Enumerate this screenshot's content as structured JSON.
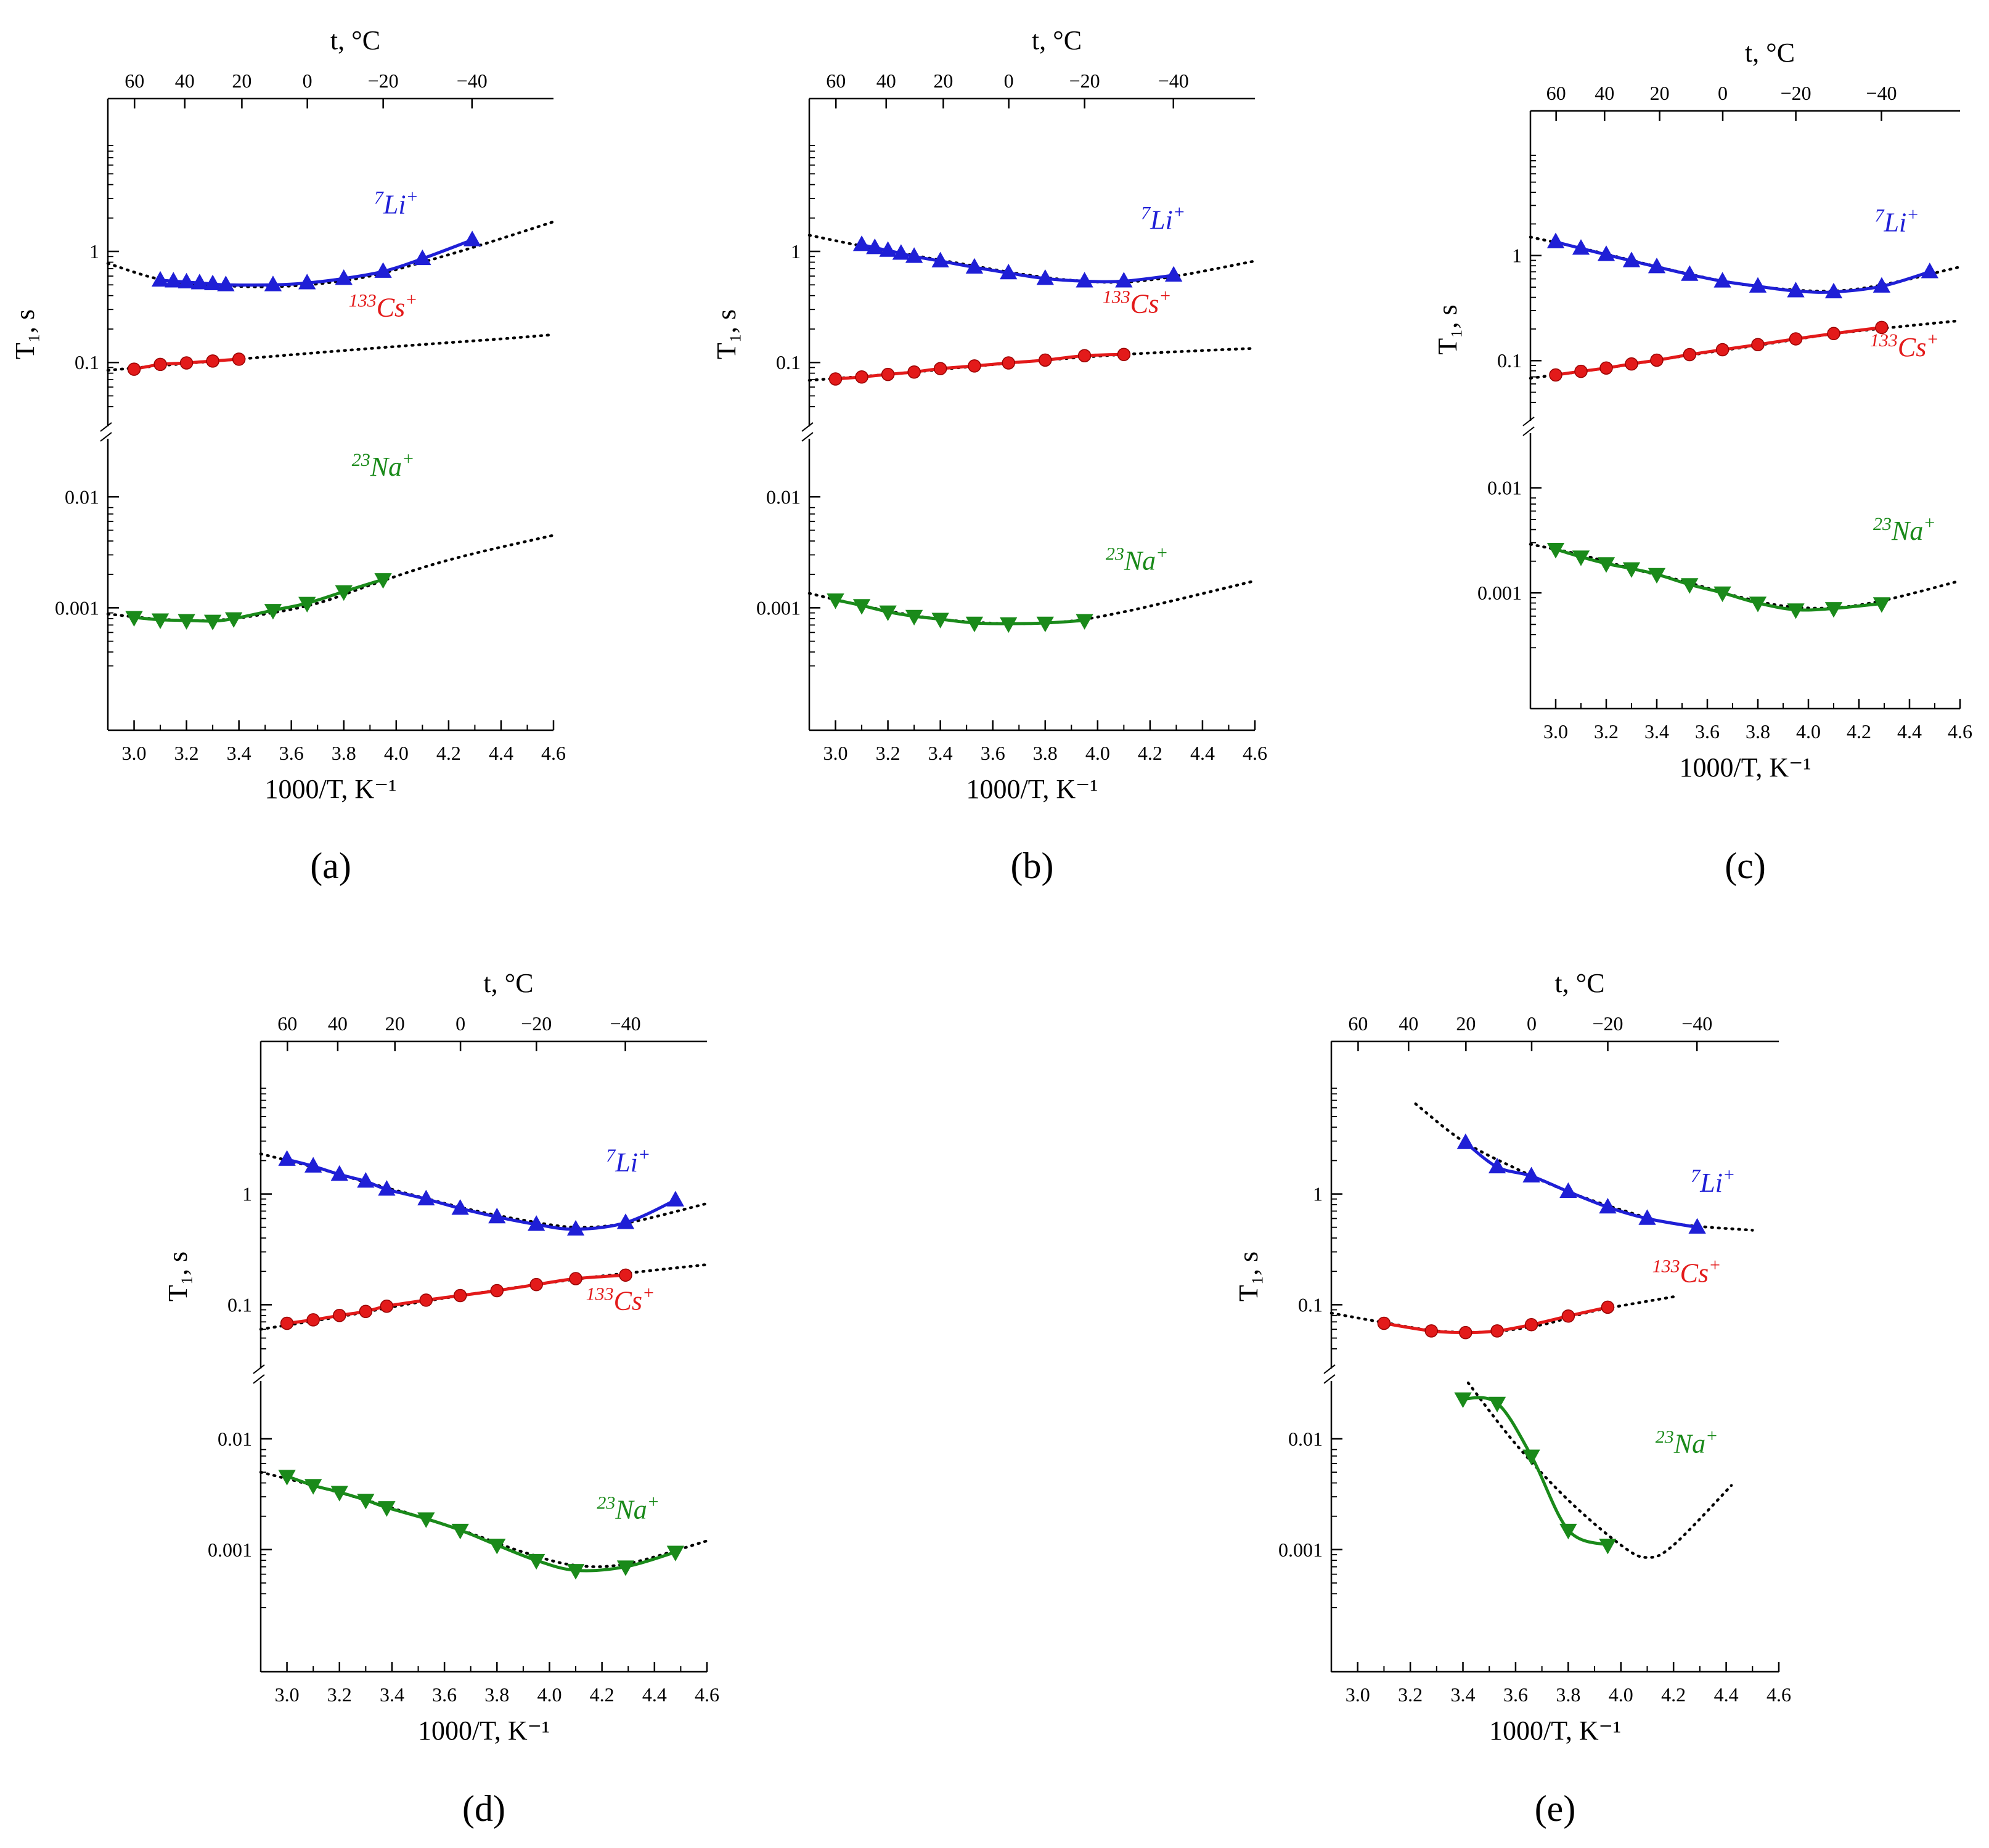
{
  "figure": {
    "panel_labels": [
      "(a)",
      "(b)",
      "(c)",
      "(d)",
      "(e)"
    ]
  },
  "chart_data": [
    {
      "panel": "(a)",
      "type": "scatter",
      "title": "",
      "xlabel": "1000/T, K⁻¹",
      "ylabel": "T₁, s",
      "top_axis_label": "t, °C",
      "top_ticks": [
        "60",
        "40",
        "20",
        "0",
        "−20",
        "−40"
      ],
      "top_tick_values_c": [
        60,
        40,
        20,
        0,
        -20,
        -40
      ],
      "xlim": [
        2.9,
        4.6
      ],
      "x_ticks": [
        "3.0",
        "3.2",
        "3.4",
        "3.6",
        "3.8",
        "4.0",
        "4.2",
        "4.4",
        "4.6"
      ],
      "y_ticks": [
        "0.001",
        "0.01",
        "0.1",
        "1"
      ],
      "y_scale": "log-broken",
      "series": [
        {
          "name": "7Li+",
          "iso": "7",
          "el": "Li",
          "sup": "+",
          "color": "#1f1fd6",
          "marker": "triangle-up",
          "x": [
            3.1,
            3.15,
            3.2,
            3.25,
            3.3,
            3.35,
            3.53,
            3.66,
            3.8,
            3.95,
            4.1,
            4.29
          ],
          "y": [
            0.55,
            0.54,
            0.53,
            0.52,
            0.51,
            0.5,
            0.5,
            0.52,
            0.57,
            0.66,
            0.86,
            1.27
          ],
          "fit_x": [
            2.9,
            3.1,
            3.3,
            3.5,
            3.7,
            3.9,
            4.1,
            4.3,
            4.6
          ],
          "fit_y": [
            0.78,
            0.56,
            0.5,
            0.48,
            0.51,
            0.6,
            0.8,
            1.1,
            1.85
          ]
        },
        {
          "name": "133Cs+",
          "iso": "133",
          "el": "Cs",
          "sup": "+",
          "color": "#e31a1a",
          "marker": "circle",
          "x": [
            3.0,
            3.1,
            3.2,
            3.3,
            3.4
          ],
          "y": [
            0.087,
            0.096,
            0.099,
            0.103,
            0.107
          ],
          "fit_x": [
            2.9,
            3.2,
            3.5,
            3.8,
            4.1,
            4.4,
            4.6
          ],
          "fit_y": [
            0.085,
            0.098,
            0.112,
            0.128,
            0.145,
            0.163,
            0.178
          ]
        },
        {
          "name": "23Na+",
          "iso": "23",
          "el": "Na",
          "sup": "+",
          "color": "#1a8a1a",
          "marker": "triangle-down",
          "x": [
            3.0,
            3.1,
            3.2,
            3.3,
            3.38,
            3.53,
            3.66,
            3.8,
            3.95
          ],
          "y": [
            0.00082,
            0.00078,
            0.00077,
            0.00076,
            0.0008,
            0.00095,
            0.0011,
            0.0014,
            0.0018
          ],
          "fit_x": [
            2.9,
            3.1,
            3.3,
            3.5,
            3.7,
            3.9,
            4.1,
            4.3,
            4.6
          ],
          "fit_y": [
            0.00088,
            0.00079,
            0.00077,
            0.00088,
            0.0011,
            0.0016,
            0.0023,
            0.0031,
            0.0045
          ]
        }
      ]
    },
    {
      "panel": "(b)",
      "type": "scatter",
      "title": "",
      "xlabel": "1000/T, K⁻¹",
      "ylabel": "T₁, s",
      "top_axis_label": "t, °C",
      "top_ticks": [
        "60",
        "40",
        "20",
        "0",
        "−20",
        "−40"
      ],
      "top_tick_values_c": [
        60,
        40,
        20,
        0,
        -20,
        -40
      ],
      "xlim": [
        2.9,
        4.6
      ],
      "x_ticks": [
        "3.0",
        "3.2",
        "3.4",
        "3.6",
        "3.8",
        "4.0",
        "4.2",
        "4.4",
        "4.6"
      ],
      "y_ticks": [
        "0.001",
        "0.01",
        "0.1",
        "1"
      ],
      "y_scale": "log-broken",
      "series": [
        {
          "name": "7Li+",
          "iso": "7",
          "el": "Li",
          "sup": "+",
          "color": "#1f1fd6",
          "marker": "triangle-up",
          "x": [
            3.1,
            3.15,
            3.2,
            3.25,
            3.3,
            3.4,
            3.53,
            3.66,
            3.8,
            3.95,
            4.1,
            4.29
          ],
          "y": [
            1.15,
            1.08,
            1.02,
            0.96,
            0.9,
            0.82,
            0.72,
            0.64,
            0.57,
            0.54,
            0.54,
            0.61
          ],
          "fit_x": [
            2.9,
            3.1,
            3.3,
            3.5,
            3.7,
            3.9,
            4.1,
            4.3,
            4.6
          ],
          "fit_y": [
            1.4,
            1.12,
            0.92,
            0.76,
            0.63,
            0.55,
            0.53,
            0.6,
            0.82
          ]
        },
        {
          "name": "133Cs+",
          "iso": "133",
          "el": "Cs",
          "sup": "+",
          "color": "#e31a1a",
          "marker": "circle",
          "x": [
            3.0,
            3.1,
            3.2,
            3.3,
            3.4,
            3.53,
            3.66,
            3.8,
            3.95,
            4.1
          ],
          "y": [
            0.071,
            0.074,
            0.078,
            0.082,
            0.088,
            0.093,
            0.099,
            0.105,
            0.115,
            0.118
          ],
          "fit_x": [
            2.9,
            3.2,
            3.5,
            3.8,
            4.1,
            4.4,
            4.6
          ],
          "fit_y": [
            0.069,
            0.078,
            0.091,
            0.105,
            0.118,
            0.128,
            0.134
          ]
        },
        {
          "name": "23Na+",
          "iso": "23",
          "el": "Na",
          "sup": "+",
          "color": "#1a8a1a",
          "marker": "triangle-down",
          "x": [
            3.0,
            3.1,
            3.2,
            3.3,
            3.4,
            3.53,
            3.66,
            3.8,
            3.95
          ],
          "y": [
            0.00118,
            0.00105,
            0.00092,
            0.00084,
            0.00079,
            0.00073,
            0.00072,
            0.00073,
            0.00077
          ],
          "fit_x": [
            2.9,
            3.1,
            3.3,
            3.5,
            3.7,
            3.9,
            4.1,
            4.3,
            4.6
          ],
          "fit_y": [
            0.00135,
            0.00105,
            0.00085,
            0.00075,
            0.00072,
            0.00076,
            0.00092,
            0.00118,
            0.00175
          ]
        }
      ]
    },
    {
      "panel": "(c)",
      "type": "scatter",
      "title": "",
      "xlabel": "1000/T, K⁻¹",
      "ylabel": "T₁, s",
      "top_axis_label": "t, °C",
      "top_ticks": [
        "60",
        "40",
        "20",
        "0",
        "−20",
        "−40"
      ],
      "top_tick_values_c": [
        60,
        40,
        20,
        0,
        -20,
        -40
      ],
      "xlim": [
        2.9,
        4.6
      ],
      "x_ticks": [
        "3.0",
        "3.2",
        "3.4",
        "3.6",
        "3.8",
        "4.0",
        "4.2",
        "4.4",
        "4.6"
      ],
      "y_ticks": [
        "0.001",
        "0.01",
        "0.1",
        "1"
      ],
      "y_scale": "log-broken",
      "series": [
        {
          "name": "7Li+",
          "iso": "7",
          "el": "Li",
          "sup": "+",
          "color": "#1f1fd6",
          "marker": "triangle-up",
          "x": [
            3.0,
            3.1,
            3.2,
            3.3,
            3.4,
            3.53,
            3.66,
            3.8,
            3.95,
            4.1,
            4.29,
            4.48
          ],
          "y": [
            1.35,
            1.17,
            1.02,
            0.89,
            0.78,
            0.66,
            0.57,
            0.51,
            0.46,
            0.45,
            0.51,
            0.7
          ],
          "fit_x": [
            2.9,
            3.1,
            3.3,
            3.5,
            3.7,
            3.9,
            4.1,
            4.3,
            4.6
          ],
          "fit_y": [
            1.5,
            1.18,
            0.9,
            0.69,
            0.55,
            0.48,
            0.46,
            0.53,
            0.78
          ]
        },
        {
          "name": "133Cs+",
          "iso": "133",
          "el": "Cs",
          "sup": "+",
          "color": "#e31a1a",
          "marker": "circle",
          "x": [
            3.0,
            3.1,
            3.2,
            3.3,
            3.4,
            3.53,
            3.66,
            3.8,
            3.95,
            4.1,
            4.29
          ],
          "y": [
            0.073,
            0.079,
            0.085,
            0.093,
            0.101,
            0.114,
            0.127,
            0.142,
            0.161,
            0.181,
            0.207
          ],
          "fit_x": [
            2.9,
            3.2,
            3.5,
            3.8,
            4.1,
            4.4,
            4.6
          ],
          "fit_y": [
            0.068,
            0.085,
            0.11,
            0.14,
            0.18,
            0.215,
            0.24
          ]
        },
        {
          "name": "23Na+",
          "iso": "23",
          "el": "Na",
          "sup": "+",
          "color": "#1a8a1a",
          "marker": "triangle-down",
          "x": [
            3.0,
            3.1,
            3.2,
            3.3,
            3.4,
            3.53,
            3.66,
            3.8,
            3.95,
            4.1,
            4.29
          ],
          "y": [
            0.0026,
            0.0022,
            0.0019,
            0.0017,
            0.0015,
            0.0012,
            0.001,
            0.0008,
            0.00069,
            0.00071,
            0.00079
          ],
          "fit_x": [
            2.9,
            3.1,
            3.3,
            3.5,
            3.7,
            3.9,
            4.1,
            4.3,
            4.6
          ],
          "fit_y": [
            0.0029,
            0.0023,
            0.0017,
            0.0013,
            0.00095,
            0.00075,
            0.00072,
            0.00085,
            0.0013
          ]
        }
      ]
    },
    {
      "panel": "(d)",
      "type": "scatter",
      "title": "",
      "xlabel": "1000/T, K⁻¹",
      "ylabel": "T₁, s",
      "top_axis_label": "t, °C",
      "top_ticks": [
        "60",
        "40",
        "20",
        "0",
        "−20",
        "−40"
      ],
      "top_tick_values_c": [
        60,
        40,
        20,
        0,
        -20,
        -40
      ],
      "xlim": [
        2.9,
        4.6
      ],
      "x_ticks": [
        "3.0",
        "3.2",
        "3.4",
        "3.6",
        "3.8",
        "4.0",
        "4.2",
        "4.4",
        "4.6"
      ],
      "y_ticks": [
        "0.001",
        "0.01",
        "0.1",
        "1"
      ],
      "y_scale": "log-broken",
      "series": [
        {
          "name": "7Li+",
          "iso": "7",
          "el": "Li",
          "sup": "+",
          "color": "#1f1fd6",
          "marker": "triangle-up",
          "x": [
            3.0,
            3.1,
            3.2,
            3.3,
            3.38,
            3.53,
            3.66,
            3.8,
            3.95,
            4.1,
            4.29,
            4.48
          ],
          "y": [
            2.05,
            1.78,
            1.5,
            1.3,
            1.1,
            0.9,
            0.74,
            0.62,
            0.53,
            0.48,
            0.55,
            0.88
          ],
          "fit_x": [
            2.9,
            3.1,
            3.3,
            3.5,
            3.7,
            3.9,
            4.1,
            4.3,
            4.6
          ],
          "fit_y": [
            2.3,
            1.75,
            1.28,
            0.95,
            0.72,
            0.58,
            0.5,
            0.55,
            0.82
          ]
        },
        {
          "name": "133Cs+",
          "iso": "133",
          "el": "Cs",
          "sup": "+",
          "color": "#e31a1a",
          "marker": "circle",
          "x": [
            3.0,
            3.1,
            3.2,
            3.3,
            3.38,
            3.53,
            3.66,
            3.8,
            3.95,
            4.1,
            4.29
          ],
          "y": [
            0.068,
            0.073,
            0.08,
            0.087,
            0.097,
            0.11,
            0.121,
            0.134,
            0.152,
            0.172,
            0.185
          ],
          "fit_x": [
            2.9,
            3.2,
            3.5,
            3.8,
            4.1,
            4.4,
            4.6
          ],
          "fit_y": [
            0.06,
            0.078,
            0.105,
            0.135,
            0.17,
            0.205,
            0.23
          ]
        },
        {
          "name": "23Na+",
          "iso": "23",
          "el": "Na",
          "sup": "+",
          "color": "#1a8a1a",
          "marker": "triangle-down",
          "x": [
            3.0,
            3.1,
            3.2,
            3.3,
            3.38,
            3.53,
            3.66,
            3.8,
            3.95,
            4.1,
            4.29,
            4.48
          ],
          "y": [
            0.0046,
            0.0038,
            0.0033,
            0.0028,
            0.0024,
            0.0019,
            0.0015,
            0.0011,
            0.0008,
            0.00065,
            0.0007,
            0.00095
          ],
          "fit_x": [
            2.9,
            3.1,
            3.3,
            3.5,
            3.7,
            3.9,
            4.1,
            4.3,
            4.6
          ],
          "fit_y": [
            0.005,
            0.0038,
            0.0028,
            0.002,
            0.0014,
            0.00095,
            0.00072,
            0.00075,
            0.0012
          ]
        }
      ]
    },
    {
      "panel": "(e)",
      "type": "scatter",
      "title": "",
      "xlabel": "1000/T, K⁻¹",
      "ylabel": "T₁, s",
      "top_axis_label": "t, °C",
      "top_ticks": [
        "60",
        "40",
        "20",
        "0",
        "−20",
        "−40"
      ],
      "top_tick_values_c": [
        60,
        40,
        20,
        0,
        -20,
        -40
      ],
      "xlim": [
        2.9,
        4.6
      ],
      "x_ticks": [
        "3.0",
        "3.2",
        "3.4",
        "3.6",
        "3.8",
        "4.0",
        "4.2",
        "4.4",
        "4.6"
      ],
      "y_ticks": [
        "0.001",
        "0.01",
        "0.1",
        "1"
      ],
      "y_scale": "log-broken",
      "series": [
        {
          "name": "7Li+",
          "iso": "7",
          "el": "Li",
          "sup": "+",
          "color": "#1f1fd6",
          "marker": "triangle-up",
          "x": [
            3.41,
            3.53,
            3.66,
            3.8,
            3.95,
            4.1,
            4.29
          ],
          "y": [
            2.9,
            1.75,
            1.45,
            1.05,
            0.76,
            0.6,
            0.5
          ],
          "fit_x": [
            3.22,
            3.4,
            3.6,
            3.8,
            4.0,
            4.2,
            4.5
          ],
          "fit_y": [
            6.5,
            3.0,
            1.7,
            1.05,
            0.72,
            0.54,
            0.47
          ]
        },
        {
          "name": "133Cs+",
          "iso": "133",
          "el": "Cs",
          "sup": "+",
          "color": "#e31a1a",
          "marker": "circle",
          "x": [
            3.1,
            3.28,
            3.41,
            3.53,
            3.66,
            3.8,
            3.95
          ],
          "y": [
            0.068,
            0.058,
            0.056,
            0.058,
            0.066,
            0.079,
            0.095
          ],
          "fit_x": [
            2.9,
            3.1,
            3.3,
            3.5,
            3.7,
            3.9,
            4.2
          ],
          "fit_y": [
            0.084,
            0.069,
            0.058,
            0.057,
            0.066,
            0.088,
            0.118
          ]
        },
        {
          "name": "23Na+",
          "iso": "23",
          "el": "Na",
          "sup": "+",
          "color": "#1a8a1a",
          "marker": "triangle-down",
          "x": [
            3.4,
            3.53,
            3.66,
            3.8,
            3.95
          ],
          "y": [
            0.023,
            0.021,
            0.007,
            0.0015,
            0.0011
          ],
          "fit_x": [
            3.42,
            3.6,
            3.8,
            4.0,
            4.1,
            4.2,
            4.42
          ],
          "fit_y": [
            0.032,
            0.009,
            0.0028,
            0.0011,
            0.00085,
            0.0011,
            0.0038
          ]
        }
      ]
    }
  ]
}
